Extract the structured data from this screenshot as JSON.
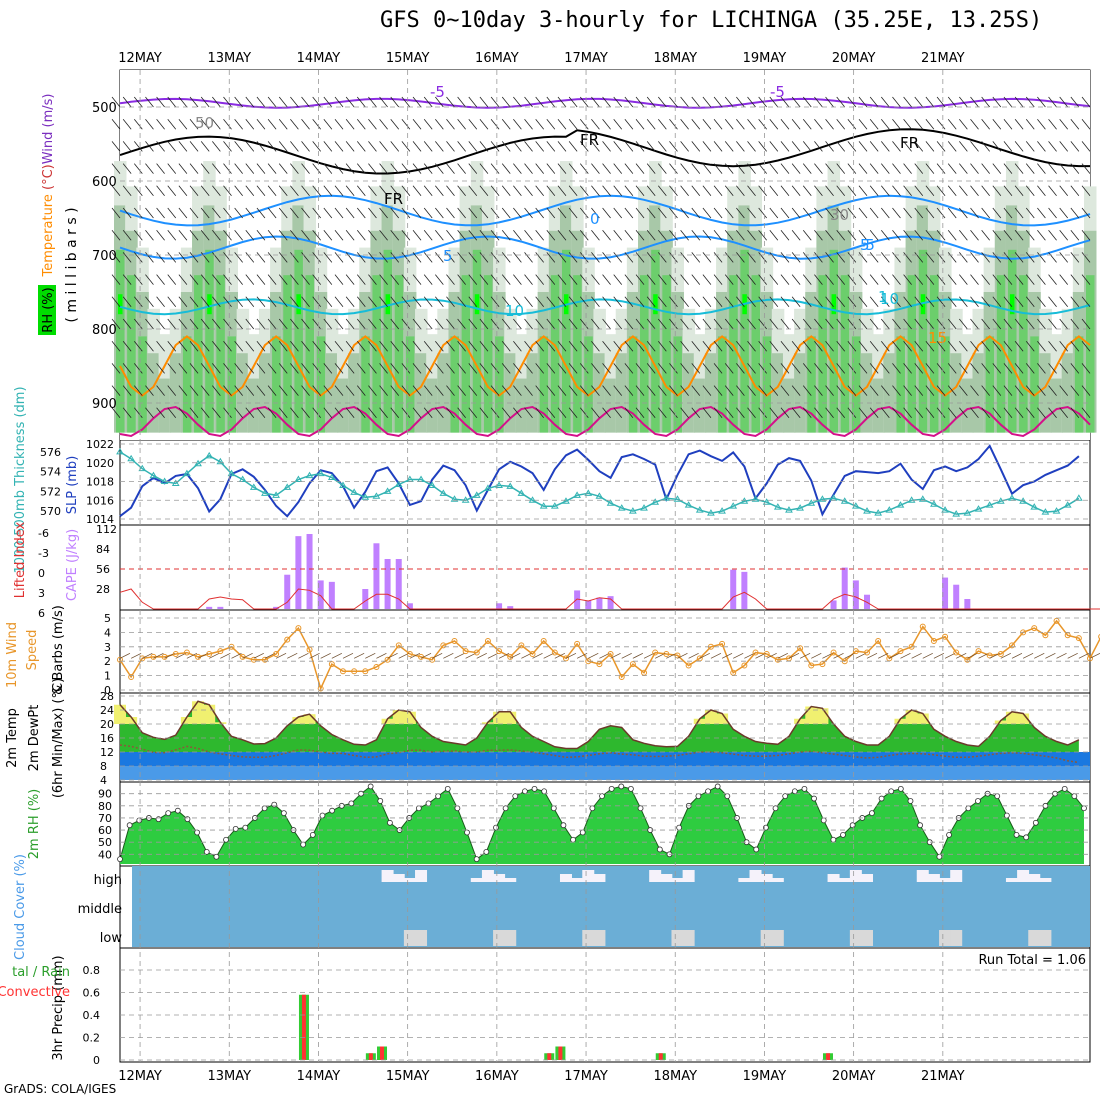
{
  "header": {
    "title": "GFS 0~10day 3-hourly for LICHINGA (35.25E, 13.25S)",
    "credit": "GrADS: COLA/IGES"
  },
  "colors": {
    "rh_green": "#2ecc40",
    "rh_bright": "#00ff00",
    "temp_purple": "#8a2be2",
    "temp_blue": "#1e90ff",
    "temp_orange": "#ff8c00",
    "slp_blue": "#1f3fbf",
    "thickness_cyan": "#33b3b3",
    "cape_purple": "#c080ff",
    "li_red": "#e03030",
    "wind_orange": "#e8962a",
    "cloud_blue": "#6baed6",
    "rain_green": "#33cc33",
    "rain_red": "#ff3333"
  },
  "chart_data": [
    {
      "id": "upper_air",
      "type": "heatmap",
      "ylabel": "Temperature (°C)Wind (m/s)",
      "ylabel_parts": [
        "Temperature ",
        "(°C)",
        "Wind (m/s)"
      ],
      "ylabel2": "( m i l l i b a r s )",
      "rh_label": "RH (%)",
      "x_ticks": [
        "12MAY",
        "13MAY",
        "14MAY",
        "15MAY",
        "16MAY",
        "17MAY",
        "18MAY",
        "19MAY",
        "20MAY",
        "21MAY"
      ],
      "y_ticks": [
        500,
        600,
        700,
        800,
        900
      ],
      "ylim": [
        450,
        950
      ],
      "contour_labels": [
        "-5",
        "-5",
        "FR",
        "FR",
        "FR",
        "0",
        "-5",
        "5",
        "10",
        "10",
        "15",
        "1",
        "5",
        "30",
        "50"
      ]
    },
    {
      "id": "slp_thickness",
      "type": "line",
      "ylabel_left": "1000-500mb Thickness (dm)",
      "ylabel_right": "SLP (mb)",
      "left_ticks": [
        570,
        572,
        574,
        576
      ],
      "right_ticks": [
        1014,
        1016,
        1018,
        1020,
        1022
      ],
      "series": [
        {
          "name": "SLP",
          "values": [
            1014.3,
            1015.2,
            1017.5,
            1018.4,
            1017.8,
            1018.6,
            1018.8,
            1017.3,
            1014.8,
            1016.1,
            1018.8,
            1019.3,
            1018.5,
            1017.1,
            1015.4,
            1014.3,
            1015.8,
            1017.8,
            1019.2,
            1018.9,
            1017.5,
            1015.2,
            1016.9,
            1019.1,
            1019.5,
            1017.8,
            1015.5,
            1015.9,
            1018.2,
            1019.7,
            1019.2,
            1017.6,
            1014.9,
            1017.1,
            1019.3,
            1020.1,
            1019.6,
            1018.9,
            1017.1,
            1019.3,
            1020.8,
            1021.4,
            1020.3,
            1019.1,
            1018.4,
            1020.6,
            1020.9,
            1020.4,
            1019.8,
            1016.1,
            1018.7,
            1020.9,
            1021.3,
            1020.7,
            1020.2,
            1021.1,
            1019.6,
            1016.2,
            1017.8,
            1019.8,
            1020.5,
            1020.2,
            1018.1,
            1014.5,
            1016.6,
            1018.6,
            1019.1,
            1019.0,
            1018.9,
            1019.1,
            1019.9,
            1018.2,
            1017.2,
            1019.2,
            1019.6,
            1019.1,
            1019.5,
            1020.4,
            1021.8,
            1019.3,
            1016.7,
            1017.6,
            1018.0,
            1018.7,
            1019.2,
            1019.7,
            1020.7
          ]
        },
        {
          "name": "Thickness",
          "values": [
            576.0,
            575.3,
            574.3,
            573.6,
            573.0,
            572.8,
            573.8,
            574.8,
            575.6,
            575.0,
            573.8,
            573.2,
            572.4,
            571.8,
            571.6,
            572.4,
            573.2,
            573.6,
            573.8,
            573.4,
            572.6,
            571.9,
            571.4,
            571.5,
            572.0,
            572.7,
            573.2,
            573.2,
            572.6,
            571.8,
            571.2,
            571.1,
            571.6,
            572.3,
            572.6,
            572.5,
            571.8,
            571.1,
            570.5,
            570.5,
            571.0,
            571.6,
            571.8,
            571.5,
            570.8,
            570.3,
            570.0,
            570.3,
            570.9,
            571.3,
            571.2,
            570.6,
            570.1,
            569.8,
            570.0,
            570.5,
            571.0,
            571.2,
            570.9,
            570.4,
            570.1,
            570.3,
            570.8,
            571.2,
            571.3,
            571.0,
            570.5,
            570.0,
            569.8,
            570.1,
            570.6,
            571.1,
            571.2,
            570.7,
            570.1,
            569.7,
            569.8,
            570.2,
            570.6,
            571.0,
            571.3,
            571.0,
            570.4,
            569.9,
            570.0,
            570.6,
            571.3
          ]
        }
      ]
    },
    {
      "id": "cape_li",
      "type": "bar",
      "ylabel_left": "Lifted Index",
      "ylabel_right": "CAPE (J/kg)",
      "li_ticks": [
        "-6",
        "-3",
        "0",
        "3",
        "6"
      ],
      "cape_ticks": [
        28,
        56,
        84,
        112
      ],
      "series": [
        {
          "name": "CAPE",
          "values": [
            0,
            0,
            0,
            0,
            0,
            0,
            0,
            0,
            3,
            3,
            0,
            0,
            0,
            0,
            3,
            48,
            102,
            105,
            40,
            38,
            0,
            0,
            28,
            92,
            70,
            70,
            8,
            0,
            0,
            0,
            0,
            0,
            0,
            0,
            8,
            4,
            0,
            0,
            0,
            0,
            0,
            26,
            12,
            16,
            18,
            0,
            0,
            0,
            0,
            0,
            0,
            0,
            0,
            0,
            0,
            55,
            52,
            0,
            0,
            0,
            0,
            0,
            0,
            0,
            12,
            58,
            40,
            20,
            0,
            0,
            0,
            0,
            0,
            0,
            44,
            34,
            14,
            0,
            0,
            0,
            0,
            0,
            0,
            0,
            0,
            0,
            0,
            0,
            0,
            0,
            6,
            0,
            4,
            4,
            4,
            8,
            0
          ]
        },
        {
          "name": "LI",
          "values": [
            3.5,
            3.0,
            5.0,
            6,
            6,
            6,
            6,
            6,
            4.5,
            4.2,
            4.5,
            4.6,
            6,
            6,
            6,
            5.0,
            3.0,
            3.2,
            4.0,
            6,
            6,
            6,
            4.8,
            3.8,
            3.8,
            4.5,
            6,
            6,
            6,
            6,
            6,
            6,
            6,
            6,
            6,
            6,
            6,
            6,
            6,
            6,
            6,
            4.5,
            4.8,
            4.3,
            4.5,
            6,
            6,
            6,
            6,
            6,
            6,
            6,
            6,
            6,
            6,
            4.2,
            3.5,
            4.5,
            6,
            6,
            6,
            6,
            6,
            6,
            4.5,
            3.8,
            4.2,
            5.0,
            6,
            6,
            6,
            6,
            6,
            6,
            6,
            6,
            6,
            6,
            6,
            6,
            6,
            6,
            6,
            6,
            6,
            6,
            6,
            6,
            6,
            6,
            6,
            6,
            6,
            6,
            6,
            6,
            6
          ]
        }
      ]
    },
    {
      "id": "wind_10m",
      "type": "line",
      "ylabel_left": "10m Wind",
      "ylabel_left2": "Speed",
      "ylabel_right": "& Barbs (m/s)",
      "y_ticks": [
        0,
        1,
        2,
        3,
        4,
        5
      ],
      "series": [
        {
          "name": "Speed",
          "values": [
            2.1,
            0.9,
            2.2,
            2.3,
            2.3,
            2.5,
            2.6,
            2.3,
            2.5,
            2.7,
            3.0,
            2.3,
            2.1,
            2.1,
            2.5,
            3.5,
            4.3,
            2.8,
            0.1,
            1.8,
            1.3,
            1.3,
            1.3,
            1.6,
            2.1,
            3.1,
            2.5,
            2.3,
            2.1,
            3.1,
            3.4,
            2.7,
            2.6,
            3.4,
            2.7,
            2.3,
            3.1,
            2.5,
            3.4,
            2.6,
            2.2,
            3.2,
            2.0,
            1.8,
            2.5,
            0.9,
            1.8,
            1.2,
            2.6,
            2.5,
            2.4,
            1.7,
            2.2,
            3.0,
            3.2,
            1.2,
            1.7,
            2.6,
            2.5,
            2.1,
            2.2,
            2.9,
            1.7,
            1.8,
            2.6,
            2.0,
            2.7,
            2.6,
            3.4,
            2.2,
            2.7,
            3.0,
            4.4,
            3.4,
            3.7,
            2.6,
            2.1,
            2.7,
            2.4,
            2.5,
            3.1,
            4.0,
            4.3,
            3.8,
            4.8,
            3.8,
            3.6,
            2.2,
            3.7,
            2.6,
            3.4,
            4.1,
            2.4,
            3.9,
            2.6,
            3.4,
            4.1
          ]
        }
      ]
    },
    {
      "id": "temp_2m",
      "type": "area",
      "ylabel": "2m Temp",
      "ylabel2": "2m DewPt",
      "ylabel3": "(6hr Min/Max) (°C)",
      "y_ticks": [
        4,
        8,
        12,
        16,
        20,
        24,
        28
      ],
      "series": [
        {
          "name": "Temp",
          "values": [
            25.5,
            22.0,
            17.5,
            16.2,
            15.6,
            16.8,
            22.0,
            26.5,
            25.5,
            20.5,
            16.5,
            15.5,
            14.3,
            14.4,
            16.0,
            19.5,
            22.0,
            22.8,
            19.5,
            17.0,
            15.5,
            14.2,
            14.0,
            15.5,
            21.5,
            24.0,
            23.5,
            19.0,
            16.5,
            15.0,
            14.5,
            14.0,
            16.0,
            20.5,
            23.5,
            23.5,
            19.0,
            16.5,
            15.0,
            13.5,
            13.0,
            13.0,
            15.0,
            18.5,
            19.5,
            19.0,
            15.5,
            14.5,
            13.8,
            13.5,
            13.6,
            16.5,
            21.5,
            24.0,
            23.0,
            18.5,
            16.5,
            15.0,
            14.5,
            14.2,
            16.5,
            21.5,
            25.0,
            24.5,
            20.0,
            16.5,
            15.0,
            14.0,
            14.0,
            16.5,
            21.5,
            24.0,
            23.0,
            18.5,
            16.5,
            15.0,
            14.0,
            13.6,
            16.5,
            21.0,
            23.5,
            23.0,
            19.0,
            16.5,
            15.0,
            14.0,
            15.5
          ]
        },
        {
          "name": "DewPt",
          "values": [
            14.0,
            13.6,
            12.8,
            11.9,
            11.8,
            12.6,
            13.6,
            13.0,
            12.0,
            11.5,
            11.0,
            10.6,
            10.5,
            10.5,
            11.0,
            11.8,
            12.6,
            12.5,
            12.0,
            11.6,
            11.6,
            11.0,
            10.5,
            10.6,
            11.5,
            11.8,
            12.5,
            12.5,
            12.0,
            12.2,
            12.3,
            12.0,
            12.0,
            12.5,
            12.5,
            12.6,
            12.3,
            12.0,
            11.5,
            11.0,
            10.5,
            10.6,
            11.0,
            11.5,
            11.8,
            11.4,
            11.2,
            10.8,
            10.7,
            10.8,
            11.0,
            11.5,
            12.0,
            12.0,
            11.8,
            11.4,
            11.0,
            10.8,
            10.8,
            11.0,
            11.5,
            12.0,
            12.2,
            11.8,
            11.4,
            11.0,
            10.6,
            10.3,
            10.5,
            11.0,
            11.4,
            11.6,
            11.5,
            11.2,
            10.8,
            10.5,
            10.5,
            10.8,
            11.2,
            11.6,
            11.8,
            11.6,
            11.2,
            10.8,
            10.3,
            9.5,
            9.0
          ]
        }
      ]
    },
    {
      "id": "rh_2m",
      "type": "area",
      "ylabel": "2m RH (%)",
      "y_ticks": [
        40,
        50,
        60,
        70,
        80,
        90
      ],
      "series": [
        {
          "name": "RH",
          "values": [
            36,
            64,
            68,
            70,
            69,
            74,
            76,
            69,
            58,
            42,
            38,
            52,
            61,
            62,
            70,
            78,
            81,
            74,
            60,
            48,
            56,
            72,
            76,
            80,
            82,
            90,
            96,
            84,
            66,
            60,
            70,
            78,
            82,
            88,
            94,
            78,
            58,
            36,
            42,
            62,
            78,
            88,
            92,
            94,
            92,
            78,
            64,
            52,
            58,
            78,
            88,
            94,
            96,
            94,
            78,
            60,
            44,
            40,
            62,
            80,
            88,
            92,
            96,
            88,
            70,
            50,
            44,
            62,
            78,
            88,
            92,
            94,
            86,
            68,
            52,
            56,
            64,
            70,
            74,
            86,
            92,
            94,
            84,
            64,
            50,
            38,
            56,
            70,
            78,
            84,
            90,
            88,
            72,
            56,
            54,
            66,
            80,
            90,
            94,
            88,
            78
          ]
        }
      ]
    },
    {
      "id": "cloud_cover",
      "type": "heatmap",
      "ylabel": "Cloud Cover (%)",
      "levels": [
        "high",
        "middle",
        "low"
      ]
    },
    {
      "id": "precip",
      "type": "bar",
      "ylabel": "3hr Precip (mm)",
      "ylabel_left": "tal / Rain",
      "ylabel_left2": "Convective",
      "y_ticks": [
        "0",
        "0.2",
        "0.4",
        "0.6",
        "0.8"
      ],
      "run_total": "Run Total = 1.06",
      "bars": [
        {
          "t": 16.5,
          "v": 0.58
        },
        {
          "t": 22.5,
          "v": 0.06
        },
        {
          "t": 23.5,
          "v": 0.12
        },
        {
          "t": 38.5,
          "v": 0.06
        },
        {
          "t": 39.5,
          "v": 0.12
        },
        {
          "t": 48.5,
          "v": 0.06
        },
        {
          "t": 63.5,
          "v": 0.06
        }
      ]
    }
  ]
}
